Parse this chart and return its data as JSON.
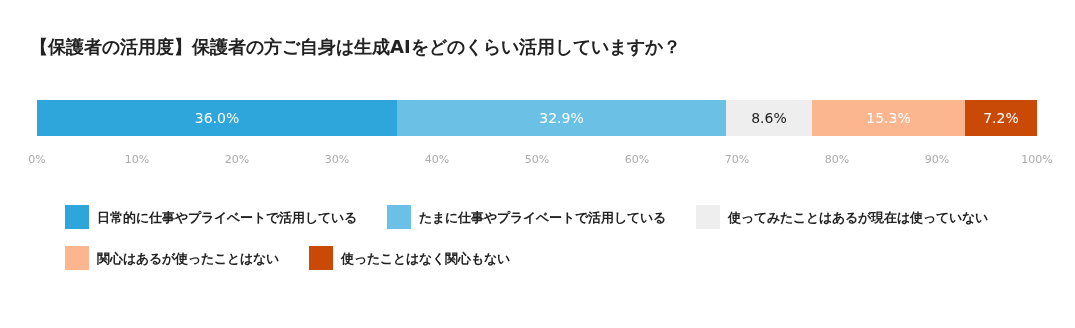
{
  "chart_data": {
    "type": "bar",
    "stacked": true,
    "orientation": "horizontal",
    "title": "【保護者の活用度】保護者の方ご自身は生成AIをどのくらい活用していますか？",
    "categories": [
      null
    ],
    "series": [
      {
        "name": "日常的に仕事やプライベートで活用している",
        "color": "#2ea6dc",
        "values": [
          36.0
        ],
        "value_labels": [
          "36.0%"
        ]
      },
      {
        "name": "たまに仕事やプライベートで活用している",
        "color": "#6bc0e5",
        "values": [
          32.9
        ],
        "value_labels": [
          "32.9%"
        ]
      },
      {
        "name": "使ってみたことはあるが現在は使っていない",
        "color": "#eeeeee",
        "values": [
          8.6
        ],
        "value_labels": [
          "8.6%"
        ]
      },
      {
        "name": "関心はあるが使ったことはない",
        "color": "#fbb58f",
        "values": [
          15.3
        ],
        "value_labels": [
          "15.3%"
        ]
      },
      {
        "name": "使ったことはなく関心もない",
        "color": "#c84a06",
        "values": [
          7.2
        ],
        "value_labels": [
          "7.2%"
        ]
      }
    ],
    "xlim": [
      0,
      100
    ],
    "xticks": [
      {
        "value": 0,
        "label": "0%"
      },
      {
        "value": 10,
        "label": "10%"
      },
      {
        "value": 20,
        "label": "20%"
      },
      {
        "value": 30,
        "label": "30%"
      },
      {
        "value": 40,
        "label": "40%"
      },
      {
        "value": 50,
        "label": "50%"
      },
      {
        "value": 60,
        "label": "60%"
      },
      {
        "value": 70,
        "label": "70%"
      },
      {
        "value": 80,
        "label": "80%"
      },
      {
        "value": 90,
        "label": "90%"
      },
      {
        "value": 100,
        "label": "100%"
      }
    ],
    "grid": false,
    "legend": "bottom"
  }
}
